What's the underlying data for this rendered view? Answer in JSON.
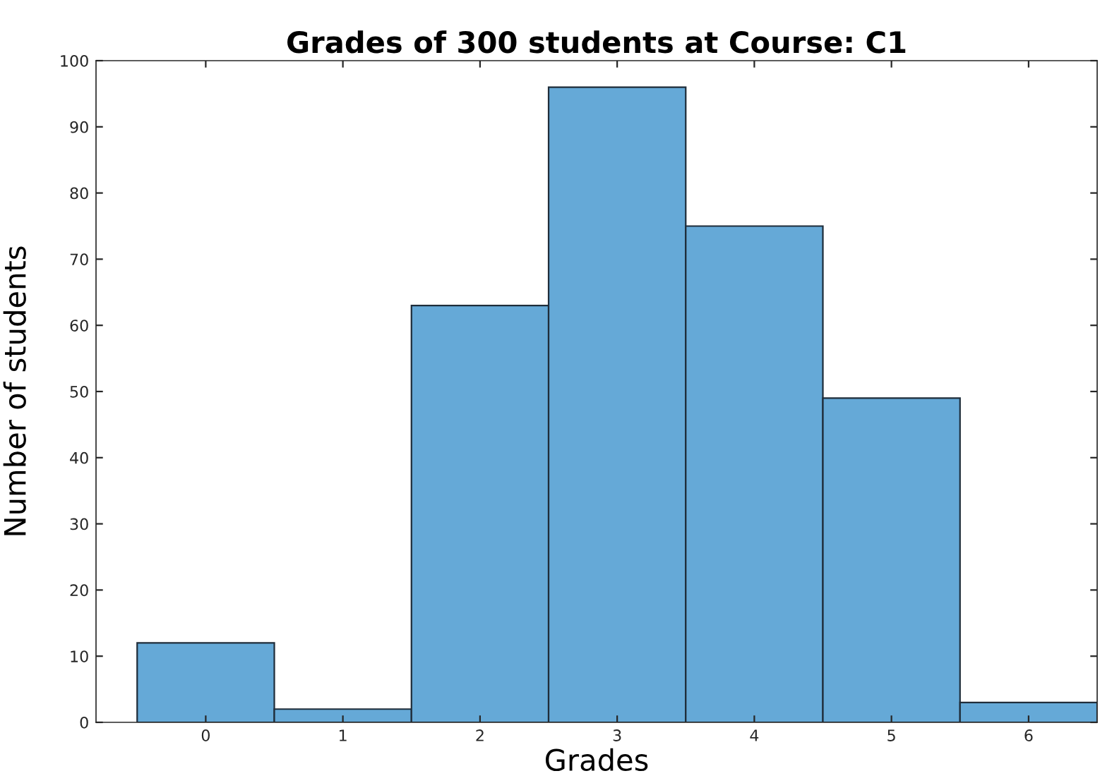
{
  "chart_data": {
    "type": "histogram",
    "title": "Grades of 300 students at Course: C1",
    "xlabel": "Grades",
    "ylabel": "Number of students",
    "bins": [
      -0.5,
      0.5,
      1.5,
      2.5,
      3.5,
      4.5,
      5.5,
      6.5
    ],
    "values": [
      12,
      2,
      63,
      96,
      75,
      49,
      3
    ],
    "color": "#65a9d7",
    "xlim": [
      -0.8,
      6.5
    ],
    "ylim": [
      0,
      100
    ],
    "xticks": [
      0,
      1,
      2,
      3,
      4,
      5,
      6
    ],
    "yticks": [
      0,
      10,
      20,
      30,
      40,
      50,
      60,
      70,
      80,
      90,
      100
    ],
    "grid": false
  }
}
